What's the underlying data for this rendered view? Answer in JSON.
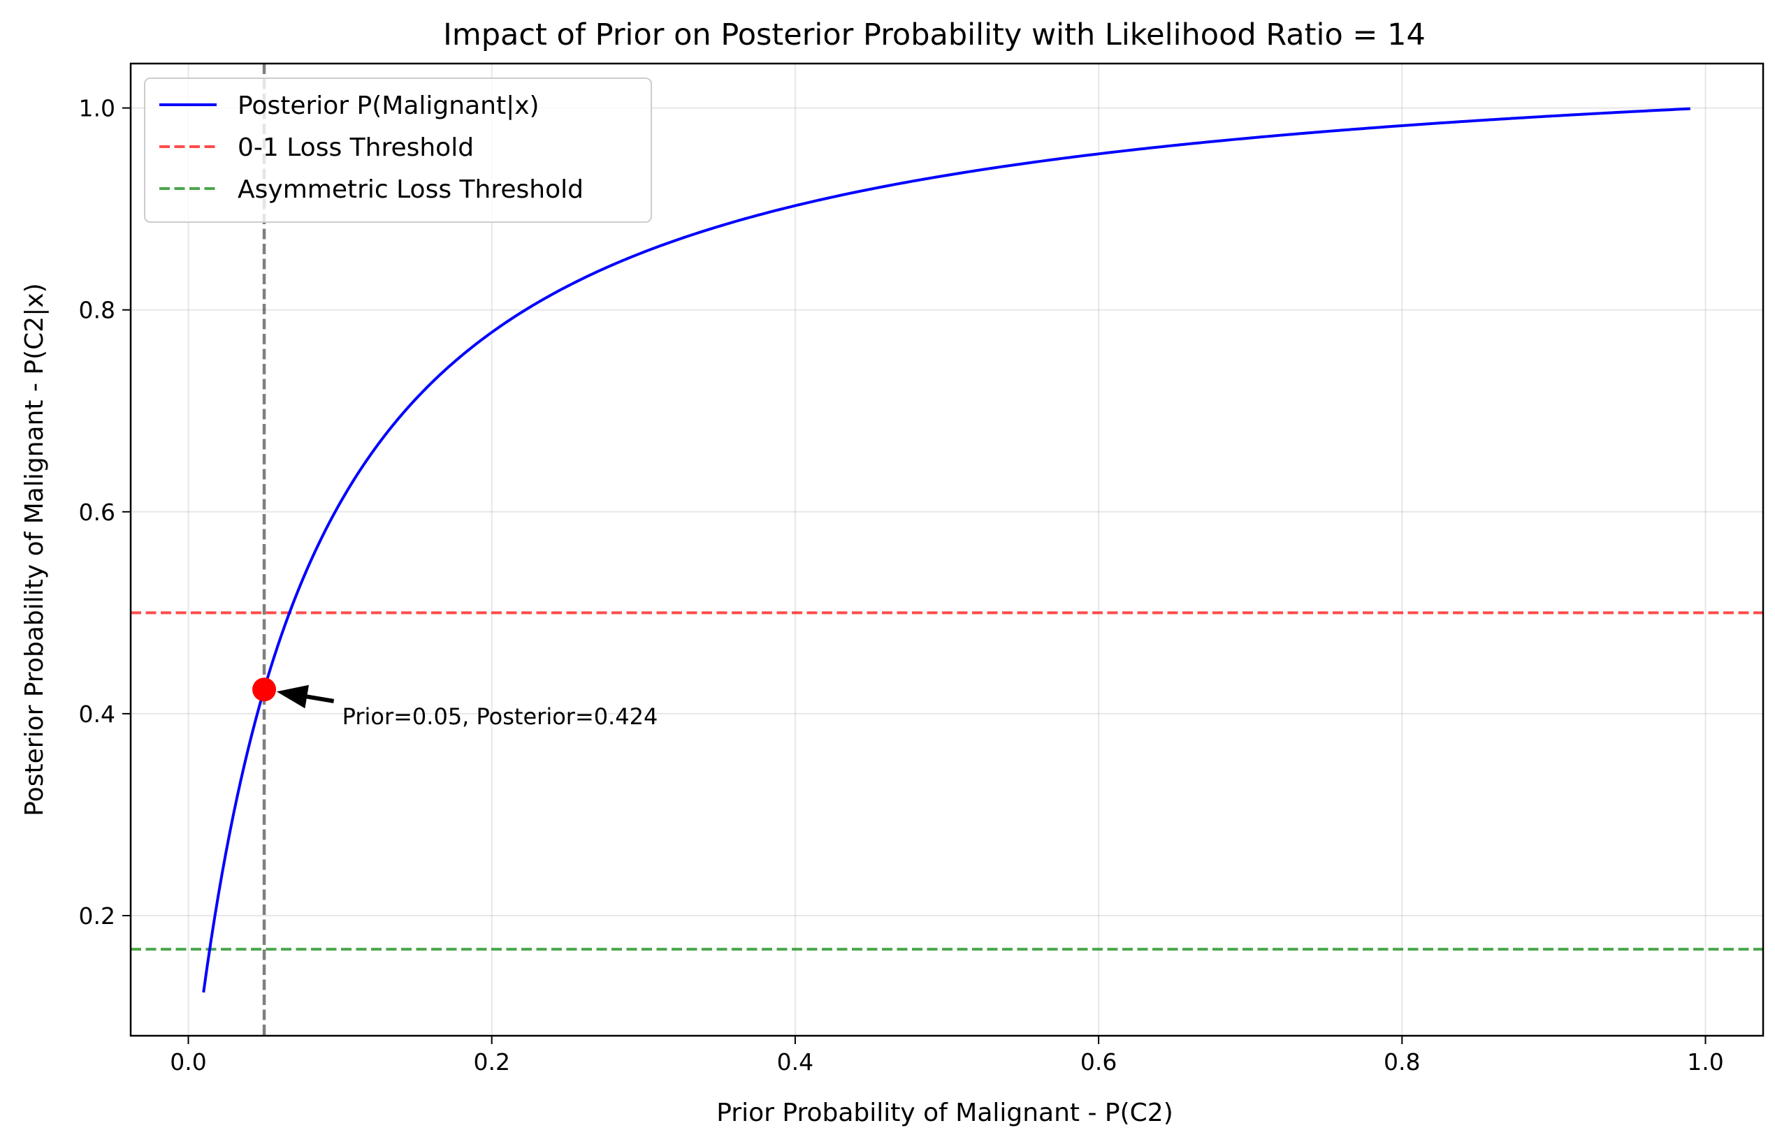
{
  "chart_data": {
    "type": "line",
    "title": "Impact of Prior on Posterior Probability with Likelihood Ratio = 14",
    "xlabel": "Prior Probability of Malignant - P(C2)",
    "ylabel": "Posterior Probability of Malignant - P(C2|x)",
    "likelihood_ratio": 14,
    "xlim": [
      -0.038,
      1.038
    ],
    "ylim": [
      0.081,
      1.044
    ],
    "xticks": [
      0.0,
      0.2,
      0.4,
      0.6,
      0.8,
      1.0
    ],
    "xtick_labels": [
      "0.0",
      "0.2",
      "0.4",
      "0.6",
      "0.8",
      "1.0"
    ],
    "yticks": [
      0.2,
      0.4,
      0.6,
      0.8,
      1.0
    ],
    "ytick_labels": [
      "0.2",
      "0.4",
      "0.6",
      "0.8",
      "1.0"
    ],
    "grid": true,
    "legend_position": "top-left",
    "series": [
      {
        "name": "Posterior P(Malignant|x)",
        "color": "#0000ff",
        "style": "solid",
        "x_range": [
          0.01,
          0.99
        ],
        "x": [
          0.01,
          0.02,
          0.03,
          0.05,
          0.07,
          0.1,
          0.15,
          0.2,
          0.3,
          0.4,
          0.5,
          0.6,
          0.7,
          0.8,
          0.9,
          0.99
        ],
        "y": [
          0.124,
          0.222,
          0.302,
          0.424,
          0.513,
          0.609,
          0.712,
          0.778,
          0.857,
          0.903,
          0.933,
          0.955,
          0.97,
          0.982,
          0.992,
          0.999
        ]
      }
    ],
    "hlines": [
      {
        "name": "0-1 Loss Threshold",
        "y": 0.5,
        "color": "#ff0000",
        "style": "dashed",
        "alpha": 0.7
      },
      {
        "name": "Asymmetric Loss Threshold",
        "y": 0.1667,
        "color": "#008000",
        "style": "dashed",
        "alpha": 0.7
      }
    ],
    "vlines": [
      {
        "x": 0.05,
        "color": "#000000",
        "style": "dashed",
        "alpha": 0.5
      }
    ],
    "highlight_point": {
      "x": 0.05,
      "y": 0.424,
      "color": "#ff0000"
    },
    "annotation": {
      "text": "Prior=0.05, Posterior=0.424",
      "point": {
        "x": 0.05,
        "y": 0.424
      },
      "text_at": {
        "x": 0.1,
        "y": 0.4
      }
    }
  }
}
